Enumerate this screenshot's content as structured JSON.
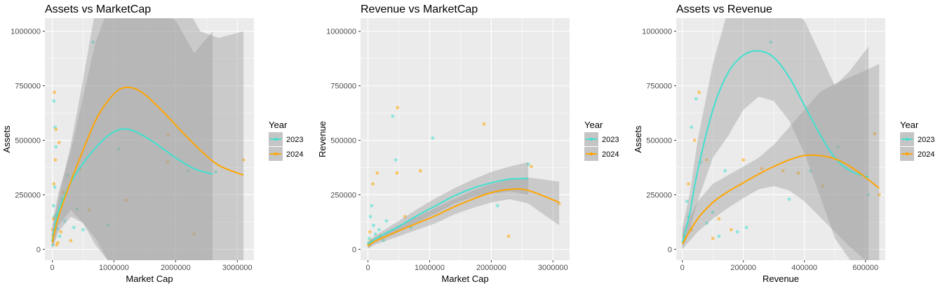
{
  "colors": {
    "panel_bg": "#ebebeb",
    "grid": "#ffffff",
    "band": "#9e9e9e",
    "y2023": "#40e0d0",
    "y2024": "#ffa500"
  },
  "chart_data": [
    {
      "type": "scatter",
      "title": "Assets vs MarketCap",
      "xlabel": "Market Cap",
      "ylabel": "Assets",
      "xlim": [
        -120000,
        3270000
      ],
      "ylim": [
        -50000,
        1060000
      ],
      "x_ticks": [
        "0",
        "1000000",
        "2000000",
        "3000000"
      ],
      "y_ticks": [
        "0",
        "250000",
        "500000",
        "750000",
        "1000000"
      ],
      "grid": true,
      "legend": {
        "title": "Year",
        "entries": [
          "2023",
          "2024"
        ],
        "position": "right"
      },
      "series": [
        {
          "name": "2023",
          "color": "#40e0d0",
          "smooth": {
            "x": [
              0,
              100000,
              300000,
              500000,
              700000,
              900000,
              1100000,
              1300000,
              1600000,
              2000000,
              2300000,
              2600000
            ],
            "y": [
              40000,
              175000,
              305000,
              395000,
              465000,
              520000,
              550000,
              545000,
              500000,
              420000,
              370000,
              345000
            ]
          },
          "band_upper": [
            115000,
            260000,
            450000,
            700000,
            950000,
            1100000,
            1150000,
            1150000,
            1100000,
            1050000,
            900000,
            1000000
          ],
          "band_lower": [
            0,
            110000,
            180000,
            120000,
            20000,
            -50000,
            -50000,
            -50000,
            -50000,
            -50000,
            -50000,
            -50000
          ],
          "points": [
            [
              10000,
              20000
            ],
            [
              30000,
              150000
            ],
            [
              45000,
              560000
            ],
            [
              60000,
              470000
            ],
            [
              15000,
              70000
            ],
            [
              80000,
              95000
            ],
            [
              120000,
              60000
            ],
            [
              200000,
              130000
            ],
            [
              400000,
              185000
            ],
            [
              660000,
              950000
            ],
            [
              1080000,
              460000
            ],
            [
              2200000,
              360000
            ],
            [
              2650000,
              355000
            ],
            [
              500000,
              90000
            ],
            [
              350000,
              100000
            ],
            [
              900000,
              110000
            ],
            [
              250000,
              340000
            ],
            [
              5000,
              40000
            ],
            [
              20000,
              200000
            ],
            [
              25000,
              680000
            ],
            [
              40000,
              285000
            ],
            [
              70000,
              160000
            ],
            [
              150000,
              230000
            ]
          ]
        },
        {
          "name": "2024",
          "color": "#ffa500",
          "smooth": {
            "x": [
              0,
              100000,
              300000,
              500000,
              700000,
              900000,
              1100000,
              1300000,
              1500000,
              1800000,
              2100000,
              2400000,
              2700000,
              3100000
            ],
            "y": [
              30000,
              150000,
              310000,
              455000,
              590000,
              680000,
              735000,
              740000,
              710000,
              630000,
              540000,
              455000,
              385000,
              340000
            ]
          },
          "band_upper": [
            95000,
            230000,
            480000,
            780000,
            1100000,
            1250000,
            1300000,
            1300000,
            1300000,
            1250000,
            1150000,
            1000000,
            970000,
            1000000
          ],
          "band_lower": [
            0,
            80000,
            150000,
            120000,
            50000,
            -50000,
            -50000,
            -50000,
            -50000,
            -50000,
            -50000,
            -50000,
            -50000,
            -50000
          ],
          "points": [
            [
              10000,
              60000
            ],
            [
              20000,
              140000
            ],
            [
              35000,
              720000
            ],
            [
              50000,
              410000
            ],
            [
              90000,
              30000
            ],
            [
              140000,
              80000
            ],
            [
              180000,
              260000
            ],
            [
              300000,
              40000
            ],
            [
              1200000,
              225000
            ],
            [
              1870000,
              400000
            ],
            [
              1880000,
              525000
            ],
            [
              2300000,
              70000
            ],
            [
              3100000,
              410000
            ],
            [
              600000,
              180000
            ],
            [
              450000,
              370000
            ],
            [
              5000,
              90000
            ],
            [
              25000,
              300000
            ],
            [
              60000,
              550000
            ],
            [
              110000,
              490000
            ],
            [
              70000,
              20000
            ]
          ]
        }
      ]
    },
    {
      "type": "scatter",
      "title": "Revenue vs MarketCap",
      "xlabel": "Market Cap",
      "ylabel": "Revenue",
      "xlim": [
        -120000,
        3270000
      ],
      "ylim": [
        -50000,
        1060000
      ],
      "x_ticks": [
        "0",
        "1000000",
        "2000000",
        "3000000"
      ],
      "y_ticks": [
        "0",
        "250000",
        "500000",
        "750000",
        "1000000"
      ],
      "grid": true,
      "legend": {
        "title": "Year",
        "entries": [
          "2023",
          "2024"
        ],
        "position": "right"
      },
      "series": [
        {
          "name": "2023",
          "color": "#40e0d0",
          "smooth": {
            "x": [
              0,
              100000,
              300000,
              500000,
              800000,
              1100000,
              1400000,
              1700000,
              2000000,
              2300000,
              2600000
            ],
            "y": [
              20000,
              45000,
              75000,
              105000,
              155000,
              200000,
              245000,
              280000,
              305000,
              322000,
              325000
            ]
          },
          "band_upper": [
            35000,
            60000,
            95000,
            130000,
            185000,
            235000,
            280000,
            320000,
            355000,
            380000,
            400000
          ],
          "band_lower": [
            5000,
            30000,
            55000,
            80000,
            125000,
            165000,
            210000,
            240000,
            255000,
            265000,
            250000
          ],
          "points": [
            [
              10000,
              30000
            ],
            [
              40000,
              150000
            ],
            [
              60000,
              200000
            ],
            [
              120000,
              70000
            ],
            [
              300000,
              130000
            ],
            [
              400000,
              610000
            ],
            [
              450000,
              410000
            ],
            [
              1050000,
              510000
            ],
            [
              2100000,
              200000
            ],
            [
              2600000,
              390000
            ],
            [
              700000,
              100000
            ],
            [
              180000,
              90000
            ],
            [
              20000,
              50000
            ],
            [
              90000,
              110000
            ],
            [
              250000,
              40000
            ]
          ]
        },
        {
          "name": "2024",
          "color": "#ffa500",
          "smooth": {
            "x": [
              0,
              100000,
              300000,
              500000,
              800000,
              1100000,
              1400000,
              1700000,
              2000000,
              2300000,
              2600000,
              3100000
            ],
            "y": [
              15000,
              35000,
              60000,
              85000,
              120000,
              155000,
              195000,
              230000,
              260000,
              275000,
              270000,
              215000
            ]
          },
          "band_upper": [
            28000,
            50000,
            80000,
            110000,
            150000,
            190000,
            230000,
            270000,
            300000,
            320000,
            330000,
            310000
          ],
          "band_lower": [
            2000,
            20000,
            40000,
            60000,
            90000,
            120000,
            160000,
            190000,
            215000,
            230000,
            210000,
            110000
          ],
          "points": [
            [
              10000,
              20000
            ],
            [
              30000,
              80000
            ],
            [
              80000,
              300000
            ],
            [
              150000,
              350000
            ],
            [
              470000,
              350000
            ],
            [
              480000,
              650000
            ],
            [
              850000,
              360000
            ],
            [
              1880000,
              575000
            ],
            [
              2280000,
              60000
            ],
            [
              2650000,
              380000
            ],
            [
              3100000,
              210000
            ],
            [
              600000,
              150000
            ],
            [
              50000,
              40000
            ],
            [
              200000,
              60000
            ]
          ]
        }
      ]
    },
    {
      "type": "scatter",
      "title": "Assets vs Revenue",
      "xlabel": "Revenue",
      "ylabel": "Assets",
      "xlim": [
        -20000,
        665000
      ],
      "ylim": [
        -50000,
        1060000
      ],
      "x_ticks": [
        "0",
        "200000",
        "400000",
        "600000"
      ],
      "y_ticks": [
        "0",
        "250000",
        "500000",
        "750000",
        "1000000"
      ],
      "grid": true,
      "legend": {
        "title": "Year",
        "entries": [
          "2023",
          "2024"
        ],
        "position": "right"
      },
      "series": [
        {
          "name": "2023",
          "color": "#40e0d0",
          "smooth": {
            "x": [
              0,
              25000,
              50000,
              100000,
              150000,
              200000,
              250000,
              300000,
              350000,
              400000,
              450000,
              500000,
              550000,
              610000
            ],
            "y": [
              30000,
              170000,
              360000,
              640000,
              810000,
              890000,
              910000,
              880000,
              790000,
              660000,
              530000,
              420000,
              360000,
              330000
            ]
          },
          "band_upper": [
            100000,
            260000,
            500000,
            850000,
            1100000,
            1150000,
            1150000,
            1150000,
            1100000,
            1050000,
            900000,
            750000,
            820000,
            930000
          ],
          "band_lower": [
            0,
            90000,
            220000,
            420000,
            520000,
            640000,
            700000,
            680000,
            590000,
            440000,
            250000,
            50000,
            -50000,
            -50000
          ],
          "points": [
            [
              5000,
              40000
            ],
            [
              15000,
              220000
            ],
            [
              30000,
              560000
            ],
            [
              45000,
              690000
            ],
            [
              60000,
              400000
            ],
            [
              100000,
              170000
            ],
            [
              140000,
              360000
            ],
            [
              210000,
              100000
            ],
            [
              290000,
              950000
            ],
            [
              350000,
              230000
            ],
            [
              420000,
              360000
            ],
            [
              510000,
              470000
            ],
            [
              610000,
              250000
            ],
            [
              80000,
              120000
            ],
            [
              120000,
              60000
            ],
            [
              180000,
              80000
            ],
            [
              20000,
              150000
            ]
          ]
        },
        {
          "name": "2024",
          "color": "#ffa500",
          "smooth": {
            "x": [
              0,
              50000,
              100000,
              150000,
              200000,
              250000,
              300000,
              350000,
              400000,
              450000,
              500000,
              550000,
              600000,
              645000
            ],
            "y": [
              25000,
              140000,
              215000,
              265000,
              305000,
              345000,
              380000,
              410000,
              430000,
              430000,
              415000,
              380000,
              330000,
              280000
            ]
          },
          "band_upper": [
            80000,
            220000,
            300000,
            340000,
            380000,
            420000,
            480000,
            560000,
            640000,
            720000,
            760000,
            790000,
            820000,
            850000
          ],
          "band_lower": [
            0,
            80000,
            140000,
            190000,
            235000,
            275000,
            290000,
            270000,
            220000,
            150000,
            80000,
            10000,
            -50000,
            -50000
          ],
          "points": [
            [
              5000,
              60000
            ],
            [
              20000,
              300000
            ],
            [
              40000,
              500000
            ],
            [
              55000,
              720000
            ],
            [
              80000,
              410000
            ],
            [
              120000,
              140000
            ],
            [
              200000,
              410000
            ],
            [
              260000,
              370000
            ],
            [
              330000,
              360000
            ],
            [
              380000,
              350000
            ],
            [
              460000,
              290000
            ],
            [
              630000,
              530000
            ],
            [
              645000,
              250000
            ],
            [
              100000,
              50000
            ],
            [
              160000,
              90000
            ],
            [
              30000,
              90000
            ]
          ]
        }
      ]
    }
  ]
}
